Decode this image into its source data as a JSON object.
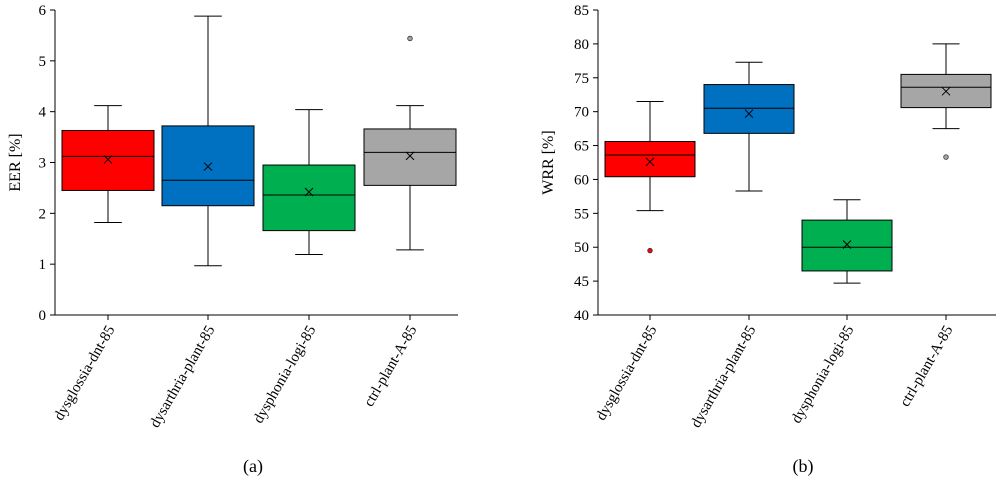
{
  "chart_data": [
    {
      "type": "box",
      "panel_label": "(a)",
      "ylabel": "EER [%]",
      "ylim": [
        0,
        6
      ],
      "yticks": [
        0,
        1,
        2,
        3,
        4,
        5,
        6
      ],
      "categories": [
        "dysglossia-dnt-85",
        "dysarthria-plant-85",
        "dysphonia-logi-85",
        "ctrl-plant-A-85"
      ],
      "boxes": [
        {
          "name": "dysglossia-dnt-85",
          "color": "#ff0000",
          "whisker_low": 1.82,
          "q1": 2.45,
          "median": 3.12,
          "q3": 3.63,
          "whisker_high": 4.12,
          "mean": 3.06,
          "outliers": []
        },
        {
          "name": "dysarthria-plant-85",
          "color": "#0070c0",
          "whisker_low": 0.97,
          "q1": 2.15,
          "median": 2.65,
          "q3": 3.72,
          "whisker_high": 5.88,
          "mean": 2.92,
          "outliers": []
        },
        {
          "name": "dysphonia-logi-85",
          "color": "#00b050",
          "whisker_low": 1.19,
          "q1": 1.66,
          "median": 2.36,
          "q3": 2.95,
          "whisker_high": 4.04,
          "mean": 2.42,
          "outliers": []
        },
        {
          "name": "ctrl-plant-A-85",
          "color": "#a6a6a6",
          "whisker_low": 1.28,
          "q1": 2.55,
          "median": 3.2,
          "q3": 3.66,
          "whisker_high": 4.12,
          "mean": 3.13,
          "outliers": [
            5.44
          ]
        }
      ]
    },
    {
      "type": "box",
      "panel_label": "(b)",
      "ylabel": "WRR [%]",
      "ylim": [
        40,
        85
      ],
      "yticks": [
        40,
        45,
        50,
        55,
        60,
        65,
        70,
        75,
        80,
        85
      ],
      "categories": [
        "dysglossia-dnt-85",
        "dysarthria-plant-85",
        "dysphonia-logi-85",
        "ctrl-plant-A-85"
      ],
      "boxes": [
        {
          "name": "dysglossia-dnt-85",
          "color": "#ff0000",
          "whisker_low": 55.4,
          "q1": 60.4,
          "median": 63.6,
          "q3": 65.6,
          "whisker_high": 71.5,
          "mean": 62.6,
          "outliers": [
            49.5
          ]
        },
        {
          "name": "dysarthria-plant-85",
          "color": "#0070c0",
          "whisker_low": 58.3,
          "q1": 66.8,
          "median": 70.5,
          "q3": 74.0,
          "whisker_high": 77.3,
          "mean": 69.7,
          "outliers": []
        },
        {
          "name": "dysphonia-logi-85",
          "color": "#00b050",
          "whisker_low": 44.7,
          "q1": 46.5,
          "median": 50.0,
          "q3": 54.0,
          "whisker_high": 57.0,
          "mean": 50.4,
          "outliers": []
        },
        {
          "name": "ctrl-plant-A-85",
          "color": "#a6a6a6",
          "whisker_low": 67.5,
          "q1": 70.6,
          "median": 73.6,
          "q3": 75.5,
          "whisker_high": 80.0,
          "mean": 73.0,
          "outliers": [
            63.3
          ]
        }
      ]
    }
  ]
}
